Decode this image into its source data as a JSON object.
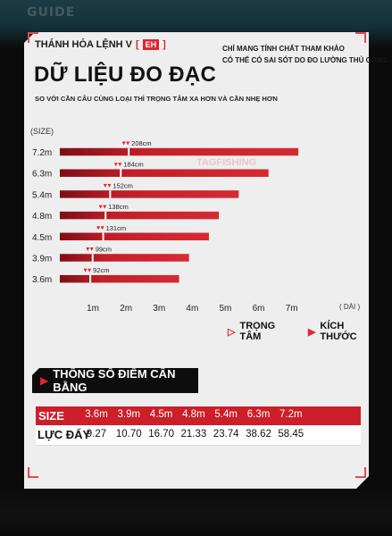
{
  "watermark": "GUIDE",
  "header": {
    "title_prefix": "THÁNH HỎA LỆNH V",
    "badge": "EH",
    "note_line1": "CHỈ MANG TÍNH CHẤT THAM KHẢO",
    "note_line2": "CÓ THỂ CÓ SAI SÓT DO ĐO LƯỜNG THỦ CÔNG",
    "main_title": "DỮ LIỆU ĐO ĐẠC",
    "subtitle": "SO VỚI CẦN CÂU CÙNG LOẠI THÌ TRỌNG TÂM XA HƠN VÀ CẦN NHẸ HƠN"
  },
  "chart_data": {
    "type": "bar",
    "orientation": "horizontal",
    "y_axis_title": "(SIZE)",
    "x_axis_title": "( DÀI )",
    "categories": [
      "7.2m",
      "6.3m",
      "5.4m",
      "4.8m",
      "4.5m",
      "3.9m",
      "3.6m"
    ],
    "x_ticks": [
      "1m",
      "2m",
      "3m",
      "4m",
      "5m",
      "6m",
      "7m"
    ],
    "xlim": [
      0,
      7.5
    ],
    "series": [
      {
        "name": "KÍCH THƯỚC",
        "values": [
          7.2,
          6.3,
          5.4,
          4.8,
          4.5,
          3.9,
          3.6
        ],
        "color": "#c8202a"
      },
      {
        "name": "TRỌNG TÂM",
        "values": [
          2.08,
          1.84,
          1.52,
          1.38,
          1.31,
          0.99,
          0.92
        ],
        "color": "#e02530"
      }
    ],
    "data_labels": [
      "208cm",
      "184cm",
      "152cm",
      "138cm",
      "131cm",
      "99cm",
      "92cm"
    ]
  },
  "logo_text": "TAGFISHING",
  "spec_table": {
    "heading": "THÔNG SỐ ĐIỂM CÂN BẰNG",
    "size_label": "SIZE",
    "force_label": "LỰC ĐẨY",
    "sizes": [
      "3.6m",
      "3.9m",
      "4.5m",
      "4.8m",
      "5.4m",
      "6.3m",
      "7.2m"
    ],
    "forces": [
      "9.27",
      "10.70",
      "16.70",
      "21.33",
      "23.74",
      "38.62",
      "58.45"
    ]
  },
  "colors": {
    "accent": "#e02530",
    "panel": "#eeeeee",
    "dark": "#0d0d0d"
  }
}
